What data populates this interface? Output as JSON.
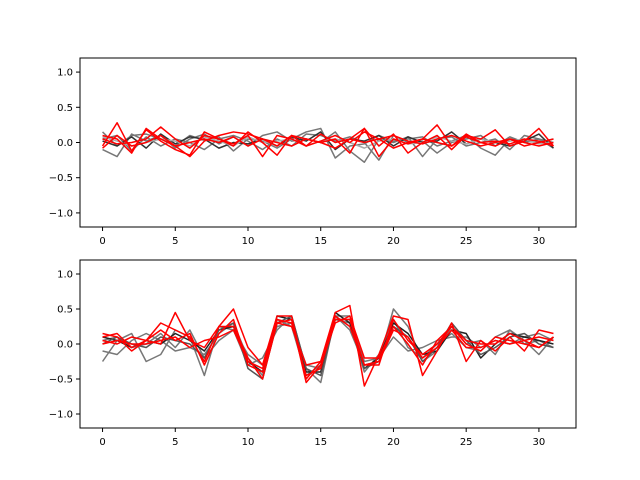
{
  "chart_data": [
    {
      "type": "line",
      "xlim": [
        -1.55,
        32.55
      ],
      "ylim": [
        -1.2,
        1.2
      ],
      "xticks": [
        0,
        5,
        10,
        15,
        20,
        25,
        30
      ],
      "xtick_labels": [
        "0",
        "5",
        "10",
        "15",
        "20",
        "25",
        "30"
      ],
      "yticks": [
        -1.0,
        -0.5,
        0.0,
        0.5,
        1.0
      ],
      "ytick_labels": [
        "−1.0",
        "−0.5",
        "0.0",
        "0.5",
        "1.0"
      ],
      "x": [
        0,
        1,
        2,
        3,
        4,
        5,
        6,
        7,
        8,
        9,
        10,
        11,
        12,
        13,
        14,
        15,
        16,
        17,
        18,
        19,
        20,
        21,
        22,
        23,
        24,
        25,
        26,
        27,
        28,
        29,
        30,
        31
      ],
      "series": [
        {
          "color": "#777777",
          "values": [
            0.15,
            -0.05,
            0.1,
            0.12,
            0.05,
            -0.05,
            0.1,
            0.03,
            0.08,
            -0.12,
            0.05,
            0.02,
            -0.08,
            0.05,
            0.15,
            0.2,
            -0.22,
            -0.05,
            -0.02,
            0.1,
            0.02,
            0.05,
            0.08,
            -0.05,
            0.02,
            0.1,
            -0.08,
            -0.18,
            0.05,
            0.02,
            0.0,
            0.05
          ]
        },
        {
          "color": "#777777",
          "values": [
            -0.1,
            -0.2,
            0.12,
            0.02,
            0.1,
            -0.08,
            0.05,
            0.12,
            -0.02,
            0.08,
            -0.05,
            0.1,
            0.15,
            0.02,
            0.05,
            0.0,
            0.15,
            -0.12,
            -0.28,
            0.05,
            0.0,
            0.08,
            -0.2,
            0.05,
            0.08,
            -0.05,
            0.0,
            0.05,
            -0.1,
            0.1,
            0.05,
            -0.08
          ]
        },
        {
          "color": "#777777",
          "values": [
            0.05,
            0.1,
            -0.12,
            0.08,
            -0.05,
            0.05,
            0.0,
            -0.1,
            0.05,
            0.1,
            0.02,
            -0.1,
            0.05,
            -0.05,
            0.12,
            0.1,
            0.02,
            0.08,
            0.0,
            -0.25,
            0.1,
            0.0,
            0.02,
            -0.15,
            0.0,
            0.05,
            0.1,
            -0.05,
            0.08,
            0.0,
            0.05,
            0.0
          ]
        },
        {
          "color": "#333333",
          "values": [
            0.02,
            -0.05,
            0.08,
            -0.08,
            0.12,
            -0.02,
            0.08,
            0.05,
            -0.08,
            0.0,
            -0.02,
            0.05,
            -0.05,
            0.08,
            0.02,
            0.15,
            -0.1,
            0.05,
            0.02,
            0.1,
            -0.05,
            0.08,
            0.0,
            0.02,
            0.15,
            -0.02,
            0.05,
            0.0,
            -0.05,
            0.02,
            0.12,
            -0.08
          ]
        },
        {
          "color": "#aaaaaa",
          "values": [
            0.08,
            0.02,
            -0.05,
            0.0,
            0.05,
            0.02,
            -0.05,
            0.08,
            0.02,
            -0.05,
            0.08,
            0.0,
            0.02,
            0.05,
            -0.05,
            0.02,
            0.05,
            0.0,
            -0.08,
            0.02,
            0.05,
            -0.02,
            0.0,
            0.08,
            0.02,
            -0.02,
            0.05,
            0.0,
            0.02,
            0.05,
            -0.02,
            0.0
          ]
        },
        {
          "color": "#ff0000",
          "values": [
            -0.05,
            0.28,
            -0.12,
            0.18,
            0.02,
            -0.1,
            -0.18,
            0.15,
            0.05,
            -0.02,
            0.1,
            -0.2,
            0.1,
            0.05,
            -0.05,
            0.12,
            0.0,
            0.05,
            0.2,
            -0.2,
            0.05,
            -0.02,
            0.05,
            0.25,
            -0.05,
            0.12,
            0.0,
            0.02,
            -0.02,
            0.05,
            0.02,
            -0.05
          ]
        },
        {
          "color": "#ff0000",
          "values": [
            0.1,
            0.05,
            -0.15,
            0.2,
            0.05,
            -0.05,
            -0.2,
            0.02,
            0.1,
            0.15,
            0.12,
            0.05,
            -0.05,
            0.1,
            0.05,
            0.0,
            0.05,
            -0.15,
            0.2,
            -0.05,
            0.12,
            -0.15,
            0.0,
            0.1,
            -0.1,
            0.1,
            0.05,
            0.18,
            -0.05,
            0.02,
            0.2,
            -0.05
          ]
        },
        {
          "color": "#ff0000",
          "values": [
            0.05,
            -0.02,
            0.0,
            0.05,
            0.22,
            0.05,
            -0.08,
            0.1,
            0.05,
            -0.05,
            0.15,
            0.0,
            -0.18,
            0.1,
            -0.05,
            0.02,
            0.1,
            0.0,
            0.15,
            0.05,
            0.1,
            0.02,
            -0.02,
            0.05,
            0.1,
            0.02,
            -0.05,
            0.0,
            0.05,
            -0.05,
            0.0,
            0.05
          ]
        },
        {
          "color": "#ff0000",
          "values": [
            -0.08,
            0.1,
            -0.05,
            0.0,
            0.1,
            -0.05,
            0.0,
            0.05,
            0.0,
            0.08,
            -0.05,
            0.05,
            0.0,
            -0.05,
            0.05,
            0.0,
            -0.08,
            0.05,
            0.0,
            0.05,
            -0.08,
            0.0,
            0.05,
            0.0,
            -0.05,
            0.08,
            0.0,
            -0.05,
            0.05,
            0.0,
            -0.05,
            0.0
          ]
        }
      ]
    },
    {
      "type": "line",
      "xlim": [
        -1.55,
        32.55
      ],
      "ylim": [
        -1.2,
        1.2
      ],
      "xticks": [
        0,
        5,
        10,
        15,
        20,
        25,
        30
      ],
      "xtick_labels": [
        "0",
        "5",
        "10",
        "15",
        "20",
        "25",
        "30"
      ],
      "yticks": [
        -1.0,
        -0.5,
        0.0,
        0.5,
        1.0
      ],
      "ytick_labels": [
        "−1.0",
        "−0.5",
        "0.0",
        "0.5",
        "1.0"
      ],
      "x": [
        0,
        1,
        2,
        3,
        4,
        5,
        6,
        7,
        8,
        9,
        10,
        11,
        12,
        13,
        14,
        15,
        16,
        17,
        18,
        19,
        20,
        21,
        22,
        23,
        24,
        25,
        26,
        27,
        28,
        29,
        30,
        31
      ],
      "series": [
        {
          "color": "#777777",
          "values": [
            -0.25,
            0.05,
            0.15,
            -0.25,
            -0.15,
            0.2,
            0.1,
            -0.45,
            0.25,
            0.2,
            -0.3,
            -0.2,
            0.2,
            0.4,
            -0.35,
            -0.55,
            0.4,
            0.2,
            -0.3,
            -0.25,
            0.5,
            0.25,
            -0.25,
            -0.1,
            0.25,
            0.0,
            0.05,
            -0.15,
            0.2,
            0.05,
            -0.15,
            0.1
          ]
        },
        {
          "color": "#777777",
          "values": [
            -0.1,
            -0.15,
            0.05,
            0.15,
            0.05,
            -0.1,
            -0.05,
            -0.15,
            0.15,
            0.3,
            -0.2,
            -0.45,
            0.35,
            0.25,
            -0.45,
            -0.3,
            0.35,
            0.3,
            -0.4,
            -0.15,
            0.35,
            -0.05,
            -0.2,
            0.0,
            0.15,
            -0.05,
            -0.1,
            0.1,
            0.2,
            0.0,
            0.05,
            -0.05
          ]
        },
        {
          "color": "#777777",
          "values": [
            0.05,
            0.1,
            -0.05,
            0.0,
            0.15,
            -0.05,
            0.2,
            -0.2,
            0.05,
            0.2,
            -0.15,
            -0.3,
            0.25,
            0.3,
            -0.3,
            -0.35,
            0.4,
            0.4,
            -0.25,
            -0.2,
            0.1,
            -0.1,
            -0.05,
            0.05,
            0.1,
            0.1,
            -0.05,
            0.05,
            0.0,
            0.1,
            0.15,
            0.05
          ]
        },
        {
          "color": "#222222",
          "values": [
            0.1,
            0.05,
            -0.05,
            0.05,
            0.0,
            0.15,
            0.05,
            -0.1,
            0.2,
            0.25,
            -0.25,
            -0.4,
            0.4,
            0.35,
            -0.4,
            -0.4,
            0.45,
            0.3,
            -0.35,
            -0.2,
            0.3,
            0.15,
            -0.15,
            -0.1,
            0.2,
            0.15,
            -0.2,
            0.0,
            0.15,
            0.1,
            0.05,
            0.0
          ]
        },
        {
          "color": "#555555",
          "values": [
            0.0,
            0.1,
            0.0,
            -0.05,
            0.1,
            0.05,
            0.0,
            -0.2,
            0.2,
            0.3,
            -0.35,
            -0.5,
            0.3,
            0.4,
            -0.35,
            -0.45,
            0.35,
            0.35,
            -0.35,
            -0.25,
            0.25,
            0.1,
            -0.25,
            -0.05,
            0.3,
            0.05,
            -0.15,
            -0.05,
            0.1,
            0.15,
            0.0,
            -0.05
          ]
        },
        {
          "color": "#ff0000",
          "values": [
            0.15,
            0.1,
            -0.1,
            0.05,
            0.0,
            0.45,
            0.05,
            -0.05,
            0.25,
            0.5,
            -0.05,
            -0.3,
            0.4,
            0.4,
            -0.5,
            -0.25,
            0.45,
            0.55,
            -0.6,
            -0.15,
            0.4,
            0.35,
            -0.45,
            -0.1,
            0.3,
            -0.25,
            0.05,
            -0.1,
            0.1,
            -0.1,
            0.2,
            0.15
          ]
        },
        {
          "color": "#ff0000",
          "values": [
            0.1,
            0.15,
            -0.05,
            0.05,
            0.3,
            0.2,
            0.1,
            -0.25,
            0.25,
            0.25,
            -0.2,
            -0.5,
            0.3,
            0.35,
            -0.55,
            -0.3,
            0.3,
            0.4,
            -0.2,
            -0.2,
            0.25,
            0.0,
            -0.3,
            0.05,
            0.25,
            0.0,
            -0.1,
            0.1,
            0.05,
            0.0,
            -0.05,
            0.1
          ]
        },
        {
          "color": "#ff0000",
          "values": [
            0.05,
            0.0,
            0.1,
            0.05,
            0.2,
            0.05,
            0.15,
            -0.3,
            0.15,
            0.35,
            -0.3,
            -0.4,
            0.35,
            0.3,
            -0.45,
            -0.35,
            0.4,
            0.25,
            -0.3,
            -0.3,
            0.35,
            0.05,
            -0.15,
            0.0,
            0.25,
            0.05,
            0.0,
            0.0,
            0.15,
            0.05,
            0.1,
            0.05
          ]
        },
        {
          "color": "#ff0000",
          "values": [
            0.0,
            0.05,
            0.0,
            0.0,
            0.05,
            0.1,
            -0.05,
            0.05,
            0.1,
            0.2,
            -0.25,
            -0.35,
            0.3,
            0.25,
            -0.3,
            -0.25,
            0.35,
            0.35,
            -0.3,
            -0.25,
            0.2,
            0.1,
            -0.2,
            -0.05,
            0.2,
            -0.05,
            -0.05,
            0.05,
            0.0,
            0.05,
            -0.05,
            0.1
          ]
        }
      ]
    }
  ]
}
